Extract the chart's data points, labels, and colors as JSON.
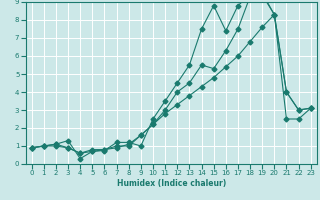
{
  "title": "",
  "xlabel": "Humidex (Indice chaleur)",
  "ylabel": "",
  "bg_color": "#cce8e8",
  "grid_color": "#ffffff",
  "line_color": "#1a7a6e",
  "xlim": [
    -0.5,
    23.5
  ],
  "ylim": [
    0,
    9
  ],
  "xticks": [
    0,
    1,
    2,
    3,
    4,
    5,
    6,
    7,
    8,
    9,
    10,
    11,
    12,
    13,
    14,
    15,
    16,
    17,
    18,
    19,
    20,
    21,
    22,
    23
  ],
  "yticks": [
    0,
    1,
    2,
    3,
    4,
    5,
    6,
    7,
    8,
    9
  ],
  "series1_x": [
    0,
    1,
    2,
    3,
    4,
    5,
    6,
    7,
    8,
    9,
    10,
    11,
    12,
    13,
    14,
    15,
    16,
    17,
    18,
    19,
    20,
    21,
    22,
    23
  ],
  "series1_y": [
    0.9,
    1.0,
    1.1,
    1.3,
    0.3,
    0.7,
    0.75,
    1.2,
    1.2,
    1.0,
    2.5,
    3.5,
    4.5,
    5.5,
    7.5,
    8.8,
    7.4,
    8.8,
    9.4,
    9.5,
    8.3,
    4.0,
    3.0,
    3.1
  ],
  "series2_x": [
    0,
    1,
    2,
    3,
    4,
    5,
    6,
    7,
    8,
    9,
    10,
    11,
    12,
    13,
    14,
    15,
    16,
    17,
    18,
    19,
    20,
    21,
    22,
    23
  ],
  "series2_y": [
    0.9,
    1.0,
    1.1,
    0.9,
    0.6,
    0.8,
    0.8,
    1.0,
    1.0,
    1.6,
    2.2,
    3.0,
    4.0,
    4.5,
    5.5,
    5.3,
    6.3,
    7.5,
    9.3,
    9.4,
    8.3,
    4.0,
    3.0,
    3.1
  ],
  "series3_x": [
    0,
    1,
    2,
    3,
    4,
    5,
    6,
    7,
    8,
    9,
    10,
    11,
    12,
    13,
    14,
    15,
    16,
    17,
    18,
    19,
    20,
    21,
    22,
    23
  ],
  "series3_y": [
    0.9,
    1.0,
    1.0,
    0.9,
    0.6,
    0.7,
    0.8,
    0.9,
    1.1,
    1.6,
    2.2,
    2.8,
    3.3,
    3.8,
    4.3,
    4.8,
    5.4,
    6.0,
    6.8,
    7.6,
    8.3,
    2.5,
    2.5,
    3.1
  ]
}
